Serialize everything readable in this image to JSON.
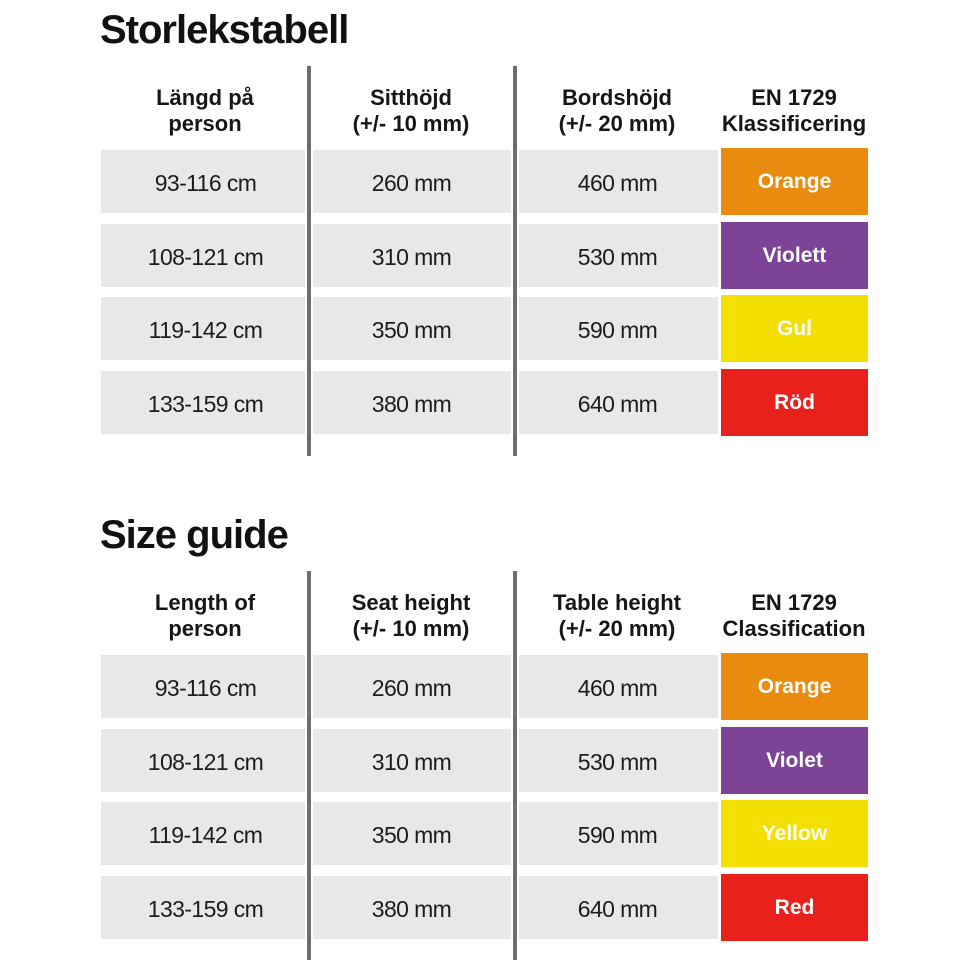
{
  "image_type": "product size guide tables",
  "colors": {
    "background": "#ffffff",
    "row_background": "#e8e8e8",
    "divider_line": "#6e6e6e",
    "text": "#1a1a1a",
    "badge_text": "#ffffff",
    "orange": "#e98b0f",
    "violet": "#7c4397",
    "yellow": "#f3df00",
    "red": "#e8211d"
  },
  "chart_data": [
    {
      "type": "table",
      "title": "Storlekstabell",
      "language": "Swedish",
      "columns": [
        "Längd på\nperson",
        "Sitthöjd\n(+/- 10 mm)",
        "Bordshöjd\n(+/- 20 mm)",
        "EN 1729\nKlassificering"
      ],
      "rows": [
        [
          "93-116 cm",
          "260 mm",
          "460 mm",
          "Orange"
        ],
        [
          "108-121 cm",
          "310 mm",
          "530 mm",
          "Violett"
        ],
        [
          "119-142 cm",
          "350 mm",
          "590 mm",
          "Gul"
        ],
        [
          "133-159 cm",
          "380 mm",
          "640 mm",
          "Röd"
        ]
      ],
      "classification_colors": [
        "#e98b0f",
        "#7c4397",
        "#f3df00",
        "#e8211d"
      ],
      "layout_hints": {
        "grid": "off",
        "column_dividers": "vertical gray lines",
        "row_style": "alternating light gray bands with white gaps"
      }
    },
    {
      "type": "table",
      "title": "Size guide",
      "language": "English",
      "columns": [
        "Length of\nperson",
        "Seat height\n(+/- 10 mm)",
        "Table height\n(+/- 20 mm)",
        "EN 1729\nClassification"
      ],
      "rows": [
        [
          "93-116 cm",
          "260 mm",
          "460 mm",
          "Orange"
        ],
        [
          "108-121 cm",
          "310 mm",
          "530 mm",
          "Violet"
        ],
        [
          "119-142 cm",
          "350 mm",
          "590 mm",
          "Yellow"
        ],
        [
          "133-159 cm",
          "380 mm",
          "640 mm",
          "Red"
        ]
      ],
      "classification_colors": [
        "#e98b0f",
        "#7c4397",
        "#f3df00",
        "#e8211d"
      ],
      "layout_hints": {
        "grid": "off",
        "column_dividers": "vertical gray lines",
        "row_style": "alternating light gray bands with white gaps"
      }
    }
  ]
}
